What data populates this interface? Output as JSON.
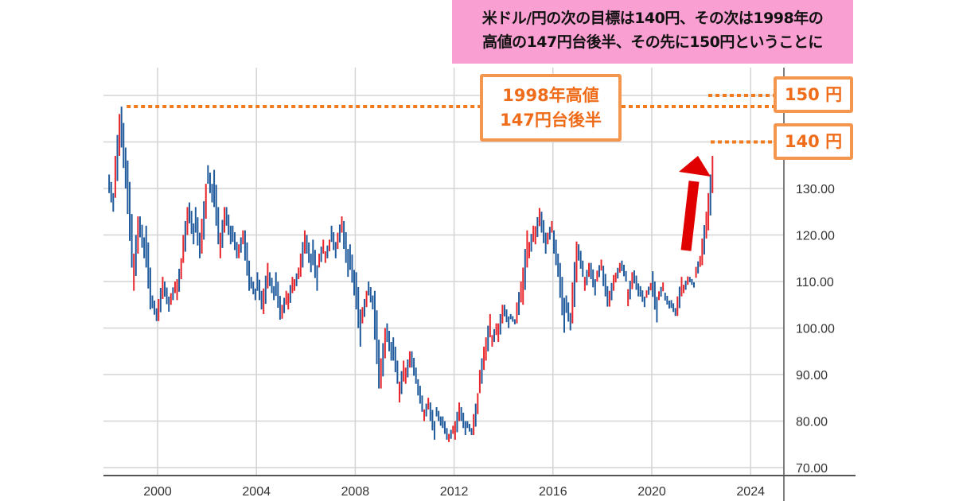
{
  "banner": {
    "line1": "米ドル/円の次の目標は140円、その次は1998年の",
    "line2": "高値の147円台後半、その先に150円ということに"
  },
  "annotations": {
    "high_1998_line1": "1998年高値",
    "high_1998_line2": "147円台後半",
    "target_150": "150 円",
    "target_140": "140 円",
    "high_1998_value": 147.6,
    "arrow": "up-arrow",
    "line_color": "#f07a1e",
    "arrow_color": "#e00000"
  },
  "chart_data": {
    "type": "bar",
    "subtype": "ohlc-range-bars",
    "title": "",
    "xlabel": "",
    "ylabel": "",
    "x_ticks": [
      "2000",
      "2004",
      "2008",
      "2012",
      "2016",
      "2020",
      "2024"
    ],
    "y_ticks": [
      "70.00",
      "80.00",
      "90.00",
      "100.00",
      "110.00",
      "120.00",
      "130.00"
    ],
    "ylim": [
      70,
      155
    ],
    "xlim": [
      1997.8,
      2025.3
    ],
    "grid": true,
    "y_axis_side": "right",
    "colors": {
      "up": "#e8262b",
      "down": "#1f5a9c"
    },
    "period_start": 1998.0,
    "period_step_years": 0.25,
    "bars": [
      [
        133,
        125,
        "d"
      ],
      [
        146,
        128,
        "u"
      ],
      [
        147.6,
        130,
        "d"
      ],
      [
        136,
        113,
        "d"
      ],
      [
        124,
        108,
        "u"
      ],
      [
        124,
        115,
        "d"
      ],
      [
        122,
        104,
        "d"
      ],
      [
        107,
        101.5,
        "d"
      ],
      [
        111,
        101.5,
        "u"
      ],
      [
        110,
        103.5,
        "d"
      ],
      [
        110,
        105,
        "u"
      ],
      [
        115,
        106,
        "u"
      ],
      [
        126,
        114,
        "u"
      ],
      [
        127,
        118,
        "d"
      ],
      [
        126,
        115,
        "d"
      ],
      [
        131,
        116,
        "u"
      ],
      [
        135,
        127,
        "d"
      ],
      [
        134,
        118,
        "d"
      ],
      [
        126,
        115,
        "u"
      ],
      [
        126,
        118,
        "d"
      ],
      [
        122,
        115,
        "d"
      ],
      [
        121,
        115,
        "u"
      ],
      [
        121,
        108,
        "d"
      ],
      [
        111,
        106,
        "d"
      ],
      [
        112,
        104,
        "d"
      ],
      [
        114,
        103,
        "u"
      ],
      [
        112,
        106,
        "d"
      ],
      [
        112,
        101.8,
        "d"
      ],
      [
        108,
        102,
        "u"
      ],
      [
        111,
        104,
        "u"
      ],
      [
        113,
        108,
        "u"
      ],
      [
        121,
        111,
        "u"
      ],
      [
        120,
        112,
        "d"
      ],
      [
        119,
        108,
        "d"
      ],
      [
        119,
        113,
        "u"
      ],
      [
        119,
        114,
        "u"
      ],
      [
        122,
        115,
        "d"
      ],
      [
        124,
        117,
        "u"
      ],
      [
        123,
        111,
        "d"
      ],
      [
        118,
        107,
        "d"
      ],
      [
        112,
        96,
        "d"
      ],
      [
        108,
        101,
        "u"
      ],
      [
        110,
        104,
        "d"
      ],
      [
        108,
        87,
        "d"
      ],
      [
        100,
        87,
        "u"
      ],
      [
        101,
        93,
        "d"
      ],
      [
        98,
        88,
        "d"
      ],
      [
        93,
        84,
        "u"
      ],
      [
        95,
        88,
        "u"
      ],
      [
        95,
        88,
        "d"
      ],
      [
        89,
        82,
        "d"
      ],
      [
        85,
        80,
        "u"
      ],
      [
        84,
        76,
        "d"
      ],
      [
        83,
        79,
        "d"
      ],
      [
        81,
        76,
        "d"
      ],
      [
        79,
        75.5,
        "u"
      ],
      [
        84,
        76,
        "u"
      ],
      [
        83,
        77,
        "d"
      ],
      [
        80,
        77,
        "d"
      ],
      [
        86,
        77,
        "u"
      ],
      [
        96,
        86,
        "u"
      ],
      [
        103,
        93,
        "u"
      ],
      [
        101,
        96,
        "u"
      ],
      [
        105,
        97,
        "u"
      ],
      [
        105,
        100,
        "d"
      ],
      [
        103,
        100.8,
        "d"
      ],
      [
        110,
        101,
        "u"
      ],
      [
        121,
        105,
        "u"
      ],
      [
        122,
        115,
        "u"
      ],
      [
        125.8,
        118,
        "u"
      ],
      [
        125,
        116,
        "d"
      ],
      [
        123,
        118,
        "u"
      ],
      [
        121,
        111,
        "d"
      ],
      [
        114,
        99,
        "d"
      ],
      [
        107,
        99.5,
        "d"
      ],
      [
        118.6,
        101,
        "u"
      ],
      [
        118,
        111,
        "d"
      ],
      [
        114,
        108,
        "u"
      ],
      [
        114,
        107,
        "d"
      ],
      [
        114.7,
        110,
        "u"
      ],
      [
        113.4,
        104.6,
        "d"
      ],
      [
        111.4,
        104.6,
        "u"
      ],
      [
        114,
        109.8,
        "u"
      ],
      [
        114.5,
        110,
        "d"
      ],
      [
        112,
        104.7,
        "u"
      ],
      [
        112.4,
        106.8,
        "d"
      ],
      [
        109,
        104.5,
        "d"
      ],
      [
        109.7,
        106.5,
        "u"
      ],
      [
        112.2,
        101.2,
        "d"
      ],
      [
        109.8,
        106,
        "u"
      ],
      [
        107.6,
        104.2,
        "d"
      ],
      [
        106,
        102.6,
        "d"
      ],
      [
        111,
        102.6,
        "u"
      ],
      [
        111.1,
        107.5,
        "u"
      ],
      [
        111,
        108.7,
        "d"
      ],
      [
        115.5,
        110.8,
        "u"
      ],
      [
        125,
        113.5,
        "u"
      ],
      [
        137,
        121,
        "u"
      ]
    ],
    "reference_lines": [
      147.6,
      150,
      140
    ]
  }
}
